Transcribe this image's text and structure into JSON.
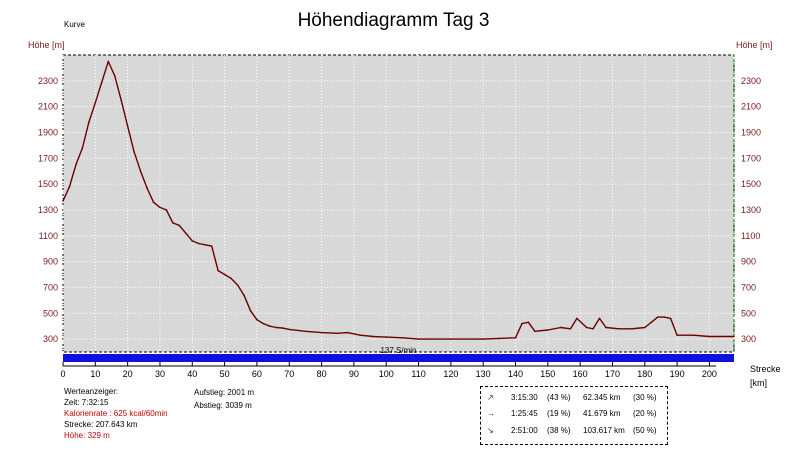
{
  "chart_data": {
    "type": "area",
    "title": "Höhendiagramm Tag 3",
    "legend_label": "Kurve",
    "ylabel": "Höhe [m]",
    "xlabel": "Strecke",
    "xunit": "[km]",
    "xlim": [
      0,
      207.6
    ],
    "ylim": [
      200,
      2500
    ],
    "x_ticks": [
      0,
      10,
      20,
      30,
      40,
      50,
      60,
      70,
      80,
      90,
      100,
      110,
      120,
      130,
      140,
      150,
      160,
      170,
      180,
      190,
      200
    ],
    "y_ticks": [
      300,
      500,
      700,
      900,
      1100,
      1300,
      1500,
      1700,
      1900,
      2100,
      2300
    ],
    "line_color": "#6b0000",
    "plot_bg": "#d8d8d8",
    "grid": true,
    "bar_color": "#1010e0",
    "bar_label": "137 S/min",
    "x": [
      0,
      2,
      4,
      6,
      8,
      10,
      12,
      14,
      16,
      18,
      20,
      22,
      24,
      26,
      28,
      30,
      32,
      34,
      36,
      38,
      40,
      42,
      44,
      46,
      48,
      50,
      52,
      54,
      56,
      58,
      60,
      62,
      64,
      66,
      68,
      70,
      75,
      80,
      85,
      88,
      92,
      96,
      100,
      105,
      110,
      120,
      130,
      135,
      140,
      142,
      144,
      146,
      150,
      154,
      157,
      159,
      162,
      164,
      166,
      168,
      172,
      176,
      180,
      182,
      184,
      186,
      188,
      190,
      195,
      200,
      205,
      207.6
    ],
    "y": [
      1370,
      1480,
      1650,
      1780,
      1980,
      2130,
      2290,
      2450,
      2340,
      2150,
      1950,
      1750,
      1600,
      1470,
      1360,
      1320,
      1300,
      1200,
      1180,
      1120,
      1060,
      1040,
      1030,
      1020,
      830,
      800,
      770,
      720,
      640,
      520,
      450,
      420,
      400,
      390,
      385,
      375,
      360,
      350,
      345,
      350,
      330,
      320,
      315,
      310,
      300,
      300,
      300,
      305,
      310,
      420,
      430,
      360,
      370,
      390,
      380,
      460,
      390,
      380,
      460,
      390,
      380,
      380,
      390,
      430,
      470,
      470,
      460,
      330,
      330,
      320,
      320,
      320
    ]
  },
  "info_left": {
    "heading": "Werteanzeiger:",
    "time": "Zeit: 7:32:15",
    "calories": "Kalorienrate : 625 kcal/60min",
    "distance": "Strecke: 207.643 km",
    "altitude": "Höhe: 329 m"
  },
  "info_mid": {
    "ascent": "Aufstieg: 2001 m",
    "descent": "Abstieg: 3039 m"
  },
  "stats": [
    {
      "icon": "up-arrow",
      "symbol": "↗",
      "time": "3:15:30",
      "time_pct": "(43 %)",
      "dist": "62.345 km",
      "dist_pct": "(30 %)"
    },
    {
      "icon": "level-arrow",
      "symbol": "→",
      "time": "1:25:45",
      "time_pct": "(19 %)",
      "dist": "41.679 km",
      "dist_pct": "(20 %)"
    },
    {
      "icon": "down-arrow",
      "symbol": "↘",
      "time": "2:51:00",
      "time_pct": "(38 %)",
      "dist": "103.617 km",
      "dist_pct": "(50 %)"
    }
  ]
}
